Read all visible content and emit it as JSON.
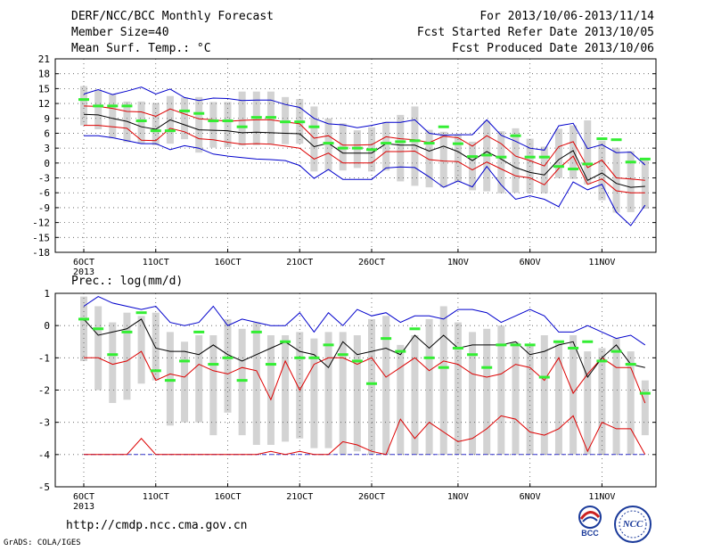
{
  "header": {
    "title": "DERF/NCC/BCC Monthly Forecast",
    "member_size": "Member Size=40",
    "variable": "Mean Surf. Temp.: °C",
    "period": "For 2013/10/06-2013/11/14",
    "refer_date": "Fcst Started Refer Date 2013/10/05",
    "produced_date": "Fcst Produced Date 2013/10/06"
  },
  "footer": {
    "url": "http://cmdp.ncc.cma.gov.cn",
    "credit": "GrADS: COLA/IGES"
  },
  "logos": {
    "bcc_text": "BCC",
    "ncc_text": "NCC"
  },
  "colors": {
    "grey_bar": "#d3d3d3",
    "ens_mean": "#000000",
    "inner": "#dd0000",
    "outer": "#0000cc",
    "obs": "#33ee33",
    "bottom_dash": "#3333cc"
  },
  "chart_data": [
    {
      "type": "line",
      "title": "",
      "ylabel": "",
      "ylim": [
        -18,
        21
      ],
      "yticks": [
        -18,
        -15,
        -12,
        -9,
        -6,
        -3,
        0,
        3,
        6,
        9,
        12,
        15,
        18,
        21
      ],
      "x_ticks": [
        {
          "day": 1,
          "label": "6OCT",
          "sub": "2013"
        },
        {
          "day": 6,
          "label": "11OCT"
        },
        {
          "day": 11,
          "label": "16OCT"
        },
        {
          "day": 16,
          "label": "21OCT"
        },
        {
          "day": 21,
          "label": "26OCT"
        },
        {
          "day": 27,
          "label": "1NOV"
        },
        {
          "day": 32,
          "label": "6NOV"
        },
        {
          "day": 37,
          "label": "11NOV"
        }
      ],
      "grid": true,
      "series": [
        {
          "role": "bar_top",
          "values": [
            15.5,
            14.8,
            13.8,
            12.4,
            12.4,
            12.1,
            13.5,
            13.2,
            13.3,
            12.3,
            12.3,
            14.4,
            14.4,
            14.4,
            13.3,
            12.9,
            11.4,
            9.0,
            8.0,
            6.6,
            7.2,
            8.3,
            9.7,
            11.4,
            6.7,
            6.3,
            5.7,
            4.3,
            8.5,
            6.4,
            7.0,
            4.9,
            3.3,
            6.9,
            7.6,
            8.6,
            4.5,
            3.1,
            2.4,
            1.0
          ]
        },
        {
          "role": "bar_bottom",
          "values": [
            7.6,
            6.8,
            5.0,
            4.2,
            3.9,
            3.6,
            3.9,
            4.8,
            2.1,
            3.1,
            3.2,
            3.5,
            3.6,
            3.8,
            3.8,
            3.9,
            -1.7,
            -1.5,
            -1.5,
            -1.0,
            -1.7,
            -1.5,
            -3.7,
            -4.6,
            -4.9,
            -4.9,
            -3.9,
            -5.5,
            -5.7,
            -6.1,
            -6.0,
            -6.0,
            -6.1,
            -3.0,
            -3.2,
            -4.3,
            -7.5,
            -10.0,
            -9.9,
            -9.2
          ]
        },
        {
          "role": "outer_upper",
          "values": [
            13.9,
            14.8,
            13.8,
            14.5,
            15.3,
            13.9,
            14.9,
            13.2,
            12.6,
            13.1,
            13.0,
            12.6,
            12.7,
            12.7,
            11.8,
            11.2,
            9.0,
            7.9,
            7.7,
            7.1,
            7.6,
            8.2,
            8.2,
            8.7,
            6.0,
            5.6,
            5.7,
            5.7,
            8.7,
            5.6,
            4.4,
            3.0,
            2.6,
            7.5,
            8.0,
            2.9,
            3.7,
            2.1,
            2.2,
            -0.4
          ]
        },
        {
          "role": "inner_upper",
          "values": [
            11.5,
            11.4,
            11.0,
            10.4,
            10.3,
            9.4,
            10.9,
            9.9,
            8.9,
            8.7,
            8.4,
            8.6,
            8.7,
            8.7,
            8.3,
            7.9,
            5.0,
            5.5,
            3.6,
            3.6,
            3.7,
            5.3,
            4.9,
            4.7,
            4.1,
            5.4,
            5.1,
            3.4,
            5.5,
            3.9,
            1.4,
            0.5,
            -0.6,
            3.3,
            4.3,
            -0.9,
            0.6,
            -3.0,
            -3.2,
            -3.5
          ]
        },
        {
          "role": "mean",
          "values": [
            9.8,
            9.7,
            9.0,
            8.4,
            7.3,
            6.8,
            8.7,
            7.7,
            6.7,
            6.6,
            6.5,
            6.1,
            6.2,
            6.1,
            6.0,
            5.9,
            3.3,
            4.0,
            2.0,
            2.0,
            2.0,
            3.9,
            3.6,
            3.6,
            2.4,
            3.4,
            2.3,
            0.5,
            2.3,
            0.8,
            -0.9,
            -1.9,
            -2.4,
            0.7,
            2.5,
            -3.5,
            -2.0,
            -4.1,
            -4.9,
            -4.7
          ]
        },
        {
          "role": "inner_lower",
          "values": [
            7.6,
            7.6,
            7.3,
            7.0,
            4.6,
            4.5,
            7.0,
            6.3,
            4.9,
            4.7,
            4.2,
            3.8,
            3.9,
            3.8,
            3.4,
            3.0,
            0.8,
            2.0,
            0.0,
            0.0,
            0.0,
            2.3,
            2.3,
            2.4,
            0.7,
            0.4,
            0.3,
            -1.4,
            0.2,
            -1.2,
            -2.6,
            -3.0,
            -4.4,
            -1.1,
            1.4,
            -4.3,
            -3.2,
            -5.6,
            -6.0,
            -6.0
          ]
        },
        {
          "role": "outer_lower",
          "values": [
            5.5,
            5.5,
            5.1,
            4.5,
            3.9,
            3.9,
            2.7,
            3.5,
            3.0,
            1.8,
            1.4,
            1.1,
            0.8,
            0.7,
            0.5,
            -0.5,
            -3.1,
            -1.3,
            -3.3,
            -3.3,
            -3.3,
            -1.0,
            -0.8,
            -0.9,
            -2.8,
            -4.9,
            -3.6,
            -4.8,
            -0.7,
            -4.4,
            -7.3,
            -6.6,
            -7.3,
            -8.8,
            -3.8,
            -5.4,
            -4.3,
            -9.9,
            -12.6,
            -8.5
          ]
        },
        {
          "role": "obs",
          "values": [
            12.8,
            11.5,
            11.5,
            11.5,
            8.5,
            6.5,
            6.5,
            10.5,
            10.0,
            8.5,
            8.5,
            7.3,
            9.2,
            9.2,
            8.3,
            8.3,
            7.3,
            4.0,
            3.0,
            3.0,
            2.7,
            4.0,
            4.3,
            4.5,
            4.0,
            7.3,
            3.9,
            1.3,
            1.6,
            1.2,
            5.5,
            1.2,
            1.2,
            -0.7,
            -1.2,
            -0.2,
            4.9,
            4.7,
            0.2,
            0.8
          ]
        }
      ]
    },
    {
      "type": "line",
      "title": "Prec.: log(mm/d)",
      "ylabel": "",
      "ylim": [
        -5,
        1
      ],
      "yticks": [
        -5,
        -4,
        -3,
        -2,
        -1,
        0,
        1
      ],
      "x_ticks": [
        {
          "day": 1,
          "label": "6OCT",
          "sub": "2013"
        },
        {
          "day": 6,
          "label": "11OCT"
        },
        {
          "day": 11,
          "label": "16OCT"
        },
        {
          "day": 16,
          "label": "21OCT"
        },
        {
          "day": 21,
          "label": "26OCT"
        },
        {
          "day": 27,
          "label": "1NOV"
        },
        {
          "day": 32,
          "label": "6NOV"
        },
        {
          "day": 37,
          "label": "11NOV"
        }
      ],
      "grid": true,
      "series": [
        {
          "role": "bar_top",
          "values": [
            0.9,
            0.6,
            0.1,
            0.4,
            0.3,
            0.4,
            -0.2,
            -0.5,
            -0.3,
            -0.3,
            0.2,
            -0.1,
            0.1,
            -0.3,
            -0.3,
            -0.2,
            -0.4,
            -0.2,
            -0.2,
            -0.3,
            0.2,
            0.3,
            -0.6,
            -0.3,
            0.2,
            0.6,
            0.1,
            -0.2,
            -0.1,
            0.0,
            -0.5,
            -0.6,
            -0.3,
            -0.5,
            -0.3,
            -0.8,
            -0.7,
            -0.4,
            -0.8,
            -1.7
          ]
        },
        {
          "role": "bar_bottom",
          "values": [
            -1.1,
            -2.0,
            -2.4,
            -2.3,
            -1.8,
            -1.7,
            -3.1,
            -3.0,
            -3.0,
            -3.4,
            -2.7,
            -3.4,
            -3.7,
            -3.7,
            -3.6,
            -3.5,
            -3.8,
            -3.8,
            -4.0,
            -3.9,
            -4.0,
            -4.0,
            -4.0,
            -4.0,
            -4.0,
            -4.0,
            -4.0,
            -4.0,
            -4.0,
            -4.0,
            -4.0,
            -4.0,
            -4.0,
            -4.0,
            -4.0,
            -4.0,
            -4.0,
            -4.0,
            -4.0,
            -3.4
          ]
        },
        {
          "role": "outer_upper",
          "values": [
            0.6,
            0.9,
            0.7,
            0.6,
            0.5,
            0.6,
            0.1,
            0.0,
            0.1,
            0.6,
            0.0,
            0.2,
            0.1,
            0.0,
            0.0,
            0.4,
            -0.2,
            0.4,
            0.0,
            0.5,
            0.3,
            0.4,
            0.1,
            0.3,
            0.3,
            0.2,
            0.5,
            0.5,
            0.4,
            0.1,
            0.3,
            0.5,
            0.3,
            -0.2,
            -0.2,
            0.0,
            -0.2,
            -0.4,
            -0.3,
            -0.6
          ]
        },
        {
          "role": "mean",
          "values": [
            0.2,
            -0.3,
            -0.2,
            -0.1,
            0.2,
            -0.7,
            -0.8,
            -0.8,
            -0.9,
            -0.6,
            -0.9,
            -1.1,
            -0.9,
            -0.7,
            -0.5,
            -0.8,
            -0.9,
            -1.3,
            -0.5,
            -0.9,
            -0.8,
            -0.7,
            -0.9,
            -0.3,
            -0.7,
            -0.3,
            -0.7,
            -0.6,
            -0.6,
            -0.6,
            -0.5,
            -0.9,
            -0.8,
            -0.6,
            -0.5,
            -1.6,
            -1.0,
            -0.6,
            -1.2,
            -1.3
          ]
        },
        {
          "role": "inner_lower",
          "values": [
            -1.0,
            -1.0,
            -1.2,
            -1.1,
            -0.8,
            -1.7,
            -1.5,
            -1.6,
            -1.2,
            -1.4,
            -1.5,
            -1.3,
            -1.4,
            -2.3,
            -1.1,
            -2.0,
            -1.2,
            -1.0,
            -1.0,
            -1.2,
            -1.0,
            -1.6,
            -1.3,
            -1.0,
            -1.4,
            -1.1,
            -1.2,
            -1.5,
            -1.6,
            -1.5,
            -1.2,
            -1.3,
            -1.7,
            -1.0,
            -2.1,
            -1.5,
            -1.0,
            -1.3,
            -1.3,
            -2.4
          ]
        },
        {
          "role": "outer_lower",
          "values": [
            -4.0,
            -4.0,
            -4.0,
            -4.0,
            -3.5,
            -4.0,
            -4.0,
            -4.0,
            -4.0,
            -4.0,
            -4.0,
            -4.0,
            -4.0,
            -3.9,
            -4.0,
            -3.9,
            -4.0,
            -4.0,
            -3.6,
            -3.7,
            -3.9,
            -4.0,
            -2.9,
            -3.5,
            -3.0,
            -3.3,
            -3.6,
            -3.5,
            -3.2,
            -2.8,
            -2.9,
            -3.3,
            -3.4,
            -3.2,
            -2.8,
            -3.9,
            -3.0,
            -3.2,
            -3.2,
            -4.0
          ]
        },
        {
          "role": "floor_dash",
          "values": [
            -4,
            -4,
            -4,
            -4,
            -4,
            -4,
            -4,
            -4,
            -4,
            -4,
            -4,
            -4,
            -4,
            -4,
            -4,
            -4,
            -4,
            -4,
            -4,
            -4,
            -4,
            -4,
            -4,
            -4,
            -4,
            -4,
            -4,
            -4,
            -4,
            -4,
            -4,
            -4,
            -4,
            -4,
            -4,
            -4,
            -4,
            -4,
            -4,
            -4
          ]
        },
        {
          "role": "obs",
          "values": [
            0.2,
            -0.1,
            -0.9,
            -0.2,
            0.4,
            -1.4,
            -1.7,
            -1.1,
            -0.2,
            -1.2,
            -1.0,
            -1.7,
            -0.2,
            -1.2,
            -0.5,
            -1.0,
            -1.0,
            -0.6,
            -0.9,
            -1.1,
            -1.8,
            -0.4,
            -0.8,
            -0.1,
            -1.0,
            -1.3,
            -0.7,
            -0.9,
            -1.3,
            -0.6,
            -0.6,
            -0.6,
            -1.6,
            -0.5,
            -0.7,
            -0.5,
            -1.1,
            -0.8,
            -1.2,
            -2.1
          ]
        }
      ]
    }
  ]
}
